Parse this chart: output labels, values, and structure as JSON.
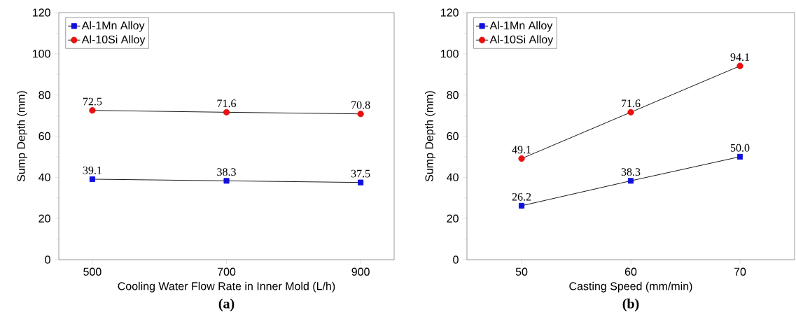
{
  "chart_data": [
    {
      "type": "line",
      "xlabel": "Cooling Water Flow Rate in Inner Mold (L/h)",
      "ylabel": "Sump Depth (mm)",
      "x": [
        500,
        700,
        900
      ],
      "xlim": [
        450,
        950
      ],
      "xticks": [
        500,
        700,
        900
      ],
      "ylim": [
        0,
        120
      ],
      "yticks": [
        0,
        20,
        40,
        60,
        80,
        100,
        120
      ],
      "series": [
        {
          "name": "Al-1Mn Alloy",
          "color": "#1010e0",
          "marker": "square",
          "values": [
            39.1,
            38.3,
            37.5
          ],
          "value_labels": [
            "39.1",
            "38.3",
            "37.5"
          ]
        },
        {
          "name": "Al-10Si Alloy",
          "color": "#e81010",
          "marker": "circle",
          "values": [
            72.5,
            71.6,
            70.8
          ],
          "value_labels": [
            "72.5",
            "71.6",
            "70.8"
          ]
        }
      ],
      "legend": "top left",
      "grid": false,
      "annotations": [
        "(a)"
      ]
    },
    {
      "type": "line",
      "xlabel": "Casting Speed (mm/min)",
      "ylabel": "Sump Depth (mm)",
      "x": [
        50,
        60,
        70
      ],
      "xlim": [
        45,
        75
      ],
      "xticks": [
        50,
        60,
        70
      ],
      "ylim": [
        0,
        120
      ],
      "yticks": [
        0,
        20,
        40,
        60,
        80,
        100,
        120
      ],
      "series": [
        {
          "name": "Al-1Mn Alloy",
          "color": "#1010e0",
          "marker": "square",
          "values": [
            26.2,
            38.3,
            50.0
          ],
          "value_labels": [
            "26.2",
            "38.3",
            "50.0"
          ]
        },
        {
          "name": "Al-10Si Alloy",
          "color": "#e81010",
          "marker": "circle",
          "values": [
            49.1,
            71.6,
            94.1
          ],
          "value_labels": [
            "49.1",
            "71.6",
            "94.1"
          ]
        }
      ],
      "legend": "top left",
      "grid": false,
      "annotations": [
        "(b)"
      ]
    }
  ]
}
